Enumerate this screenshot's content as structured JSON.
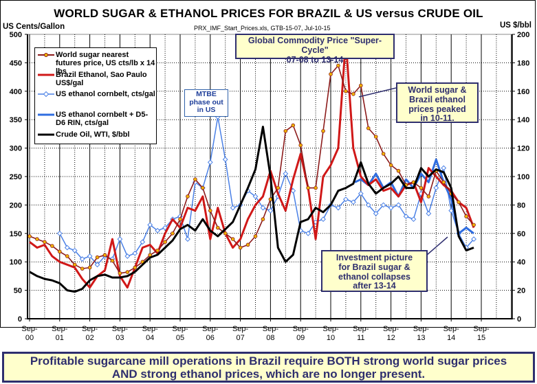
{
  "chart_data": {
    "type": "line",
    "title": "WORLD SUGAR & ETHANOL PRICES FOR BRAZIL & US versus CRUDE OIL",
    "subtitle": "PRX_IMF_Start_Prices.xls, GTB-15-07, Jul-10-15",
    "ylabel": "US Cents/Gallon",
    "y2label": "US $/bbl",
    "ylim": [
      0,
      500
    ],
    "y2lim": [
      0,
      200
    ],
    "yticks": [
      0,
      50,
      100,
      150,
      200,
      250,
      300,
      350,
      400,
      450,
      500
    ],
    "y2ticks": [
      0,
      20,
      40,
      60,
      80,
      100,
      120,
      140,
      160,
      180,
      200
    ],
    "xticks": [
      {
        "top": "Sep-",
        "bottom": "00"
      },
      {
        "top": "Sep-",
        "bottom": "01"
      },
      {
        "top": "Sep-",
        "bottom": "02"
      },
      {
        "top": "Sep-",
        "bottom": "03"
      },
      {
        "top": "Sep-",
        "bottom": "04"
      },
      {
        "top": "Sep-",
        "bottom": "05"
      },
      {
        "top": "Sep-",
        "bottom": "06"
      },
      {
        "top": "Sep-",
        "bottom": "07"
      },
      {
        "top": "Sep-",
        "bottom": "08"
      },
      {
        "top": "Sep-",
        "bottom": "09"
      },
      {
        "top": "Sep-",
        "bottom": "10"
      },
      {
        "top": "Sep-",
        "bottom": "11"
      },
      {
        "top": "Sep-",
        "bottom": "12"
      },
      {
        "top": "Sep-",
        "bottom": "13"
      },
      {
        "top": "Sep-",
        "bottom": "14"
      },
      {
        "top": "Sep-",
        "bottom": "15"
      }
    ],
    "x_unit": "years since Sep-2000",
    "grid": true,
    "legend_position": "top-left",
    "series": [
      {
        "name": "World sugar nearest futures price, US cts/lb x 14 lbs",
        "axis": "left",
        "color": "#8b1a1a",
        "marker": "circle",
        "marker_color": "#f0b400",
        "x": [
          0,
          0.25,
          0.5,
          0.75,
          1,
          1.25,
          1.5,
          1.75,
          2,
          2.25,
          2.5,
          2.75,
          3,
          3.25,
          3.5,
          3.75,
          4,
          4.25,
          4.5,
          4.75,
          5,
          5.25,
          5.5,
          5.75,
          6,
          6.25,
          6.5,
          6.75,
          7,
          7.25,
          7.5,
          7.75,
          8,
          8.25,
          8.5,
          8.75,
          9,
          9.25,
          9.5,
          9.75,
          10,
          10.25,
          10.5,
          10.75,
          11,
          11.25,
          11.5,
          11.75,
          12,
          12.25,
          12.5,
          12.75,
          13,
          13.25,
          13.5,
          13.75,
          14,
          14.25,
          14.5,
          14.75
        ],
        "values": [
          145,
          140,
          135,
          128,
          118,
          110,
          95,
          88,
          90,
          108,
          112,
          102,
          80,
          82,
          90,
          100,
          112,
          120,
          135,
          150,
          175,
          215,
          245,
          230,
          190,
          160,
          150,
          140,
          125,
          130,
          145,
          175,
          210,
          230,
          330,
          340,
          305,
          230,
          230,
          330,
          430,
          445,
          400,
          395,
          410,
          335,
          320,
          290,
          270,
          260,
          235,
          240,
          230,
          215,
          260,
          240,
          220,
          205,
          180,
          165
        ]
      },
      {
        "name": "Brazil Ethanol, Sao Paulo US$/gal",
        "axis": "left",
        "color": "#d01818",
        "x": [
          0,
          0.25,
          0.5,
          0.75,
          1,
          1.25,
          1.5,
          1.75,
          2,
          2.25,
          2.5,
          2.75,
          3,
          3.25,
          3.5,
          3.75,
          4,
          4.25,
          4.5,
          4.75,
          5,
          5.25,
          5.5,
          5.75,
          6,
          6.25,
          6.5,
          6.75,
          7,
          7.25,
          7.5,
          7.75,
          8,
          8.25,
          8.5,
          8.75,
          9,
          9.25,
          9.5,
          9.75,
          10,
          10.25,
          10.5,
          10.75,
          11,
          11.25,
          11.5,
          11.75,
          12,
          12.25,
          12.5,
          12.75,
          13,
          13.25,
          13.5,
          13.75,
          14,
          14.25,
          14.5,
          14.75
        ],
        "values": [
          135,
          125,
          130,
          110,
          100,
          95,
          90,
          70,
          55,
          75,
          85,
          140,
          75,
          55,
          90,
          125,
          130,
          115,
          150,
          175,
          160,
          195,
          190,
          215,
          140,
          195,
          150,
          125,
          140,
          175,
          200,
          215,
          260,
          220,
          190,
          245,
          290,
          230,
          140,
          250,
          270,
          300,
          490,
          300,
          250,
          235,
          245,
          225,
          230,
          215,
          235,
          240,
          205,
          265,
          250,
          235,
          225,
          205,
          195,
          160
        ]
      },
      {
        "name": "US ethanol cornbelt, cts/gal",
        "axis": "left",
        "color": "#4a80e6",
        "marker": "diamond",
        "marker_color": "#ffffff",
        "x": [
          1,
          1.25,
          1.5,
          1.75,
          2,
          2.25,
          2.5,
          2.75,
          3,
          3.25,
          3.5,
          3.75,
          4,
          4.25,
          4.5,
          4.75,
          5,
          5.25,
          5.5,
          5.75,
          6,
          6.25,
          6.5,
          6.75,
          7,
          7.25,
          7.5,
          7.75,
          8,
          8.25,
          8.5,
          8.75,
          9,
          9.25,
          9.5,
          9.75,
          10,
          10.25,
          10.5,
          10.75,
          11,
          11.25,
          11.5,
          11.75,
          12,
          12.25,
          12.5,
          12.75,
          13,
          13.25,
          13.5,
          13.75,
          14,
          14.25,
          14.5,
          14.75
        ],
        "values": [
          150,
          125,
          120,
          105,
          110,
          95,
          110,
          105,
          140,
          110,
          115,
          135,
          165,
          155,
          160,
          175,
          180,
          140,
          240,
          230,
          275,
          355,
          280,
          195,
          200,
          225,
          215,
          195,
          190,
          215,
          255,
          225,
          155,
          150,
          170,
          175,
          200,
          195,
          210,
          205,
          220,
          200,
          185,
          200,
          195,
          200,
          180,
          175,
          220,
          185,
          230,
          265,
          190,
          150,
          125,
          140
        ]
      },
      {
        "name": "US ethanol cornbelt + D5-D6 RIN, cts/gal",
        "axis": "left",
        "color": "#2f6de0",
        "x": [
          10.8,
          11,
          11.25,
          11.5,
          11.75,
          12,
          12.25,
          12.5,
          12.75,
          13,
          13.25,
          13.5,
          13.75,
          14,
          14.25,
          14.5,
          14.75
        ],
        "values": [
          240,
          245,
          235,
          255,
          230,
          240,
          215,
          245,
          230,
          255,
          240,
          280,
          240,
          210,
          150,
          160,
          150
        ]
      },
      {
        "name": "Crude Oil, WTI, $/bbl",
        "axis": "right",
        "color": "#000000",
        "x": [
          0,
          0.25,
          0.5,
          0.75,
          1,
          1.25,
          1.5,
          1.75,
          2,
          2.25,
          2.5,
          2.75,
          3,
          3.25,
          3.5,
          3.75,
          4,
          4.25,
          4.5,
          4.75,
          5,
          5.25,
          5.5,
          5.75,
          6,
          6.25,
          6.5,
          6.75,
          7,
          7.25,
          7.5,
          7.75,
          8,
          8.25,
          8.5,
          8.75,
          9,
          9.25,
          9.5,
          9.75,
          10,
          10.25,
          10.5,
          10.75,
          11,
          11.25,
          11.5,
          11.75,
          12,
          12.25,
          12.5,
          12.75,
          13,
          13.25,
          13.5,
          13.75,
          14,
          14.25,
          14.5,
          14.75
        ],
        "values": [
          33,
          30,
          28,
          27,
          25,
          20,
          19,
          21,
          27,
          30,
          31,
          29,
          29,
          30,
          33,
          38,
          43,
          45,
          50,
          55,
          63,
          66,
          62,
          70,
          62,
          58,
          63,
          68,
          80,
          92,
          105,
          135,
          100,
          50,
          40,
          45,
          68,
          70,
          78,
          75,
          80,
          90,
          92,
          95,
          110,
          95,
          88,
          92,
          95,
          100,
          92,
          92,
          106,
          100,
          105,
          103,
          92,
          58,
          48,
          50
        ]
      }
    ]
  },
  "annotations": {
    "super_cycle": [
      "Global Commodity Price \"Super-Cycle\"",
      "07-08 to 13-14"
    ],
    "peak": [
      "World sugar &",
      "Brazil ethanol",
      "prices peaked",
      "in 10-11."
    ],
    "mtbe": [
      "MTBE",
      "phase out",
      "in US"
    ],
    "investment": [
      "Investment picture",
      "for Brazil sugar &",
      "ethanol collapses",
      "after 13-14"
    ]
  },
  "banner": {
    "line1": "Profitable sugarcane mill operations in Brazil require BOTH strong world sugar prices",
    "line2": "AND strong ethanol prices, which are no longer present."
  }
}
